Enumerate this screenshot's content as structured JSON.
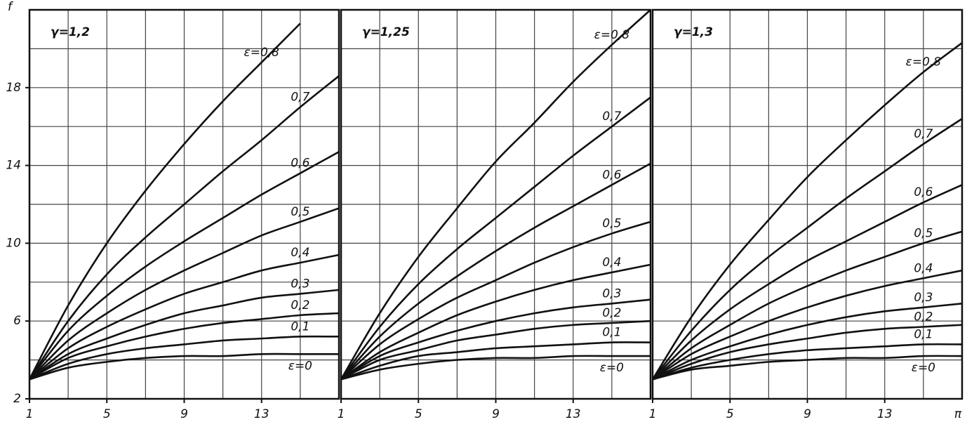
{
  "chart_data": [
    {
      "type": "line",
      "title": "γ=1,2",
      "ylabel": "f",
      "x": [
        1,
        3,
        5,
        7,
        9,
        11,
        13,
        15,
        17
      ],
      "xlim": [
        1,
        17
      ],
      "ylim": [
        2,
        22
      ],
      "xticks": [
        1,
        5,
        9,
        13
      ],
      "yticks": [
        2,
        6,
        10,
        14,
        18
      ],
      "grid_x": [
        3,
        5,
        7,
        9,
        11,
        13,
        15
      ],
      "grid_y": [
        4,
        6,
        8,
        10,
        12,
        14,
        16,
        18,
        20
      ],
      "series": [
        {
          "name": "ε=0,8",
          "color": "#111111",
          "values": [
            3,
            6.8,
            10.0,
            12.7,
            15.1,
            17.3,
            19.3,
            21.3,
            null
          ]
        },
        {
          "name": "0,7",
          "color": "#111111",
          "values": [
            3,
            6.0,
            8.4,
            10.3,
            12.0,
            13.7,
            15.3,
            17.0,
            18.6
          ]
        },
        {
          "name": "0,6",
          "color": "#111111",
          "values": [
            3,
            5.5,
            7.3,
            8.8,
            10.1,
            11.3,
            12.5,
            13.6,
            14.7
          ]
        },
        {
          "name": "0,5",
          "color": "#111111",
          "values": [
            3,
            5.0,
            6.4,
            7.6,
            8.6,
            9.5,
            10.4,
            11.1,
            11.8
          ]
        },
        {
          "name": "0,4",
          "color": "#111111",
          "values": [
            3,
            4.6,
            5.7,
            6.6,
            7.4,
            8.0,
            8.6,
            9.0,
            9.4
          ]
        },
        {
          "name": "0,3",
          "color": "#111111",
          "values": [
            3,
            4.3,
            5.1,
            5.8,
            6.4,
            6.8,
            7.2,
            7.4,
            7.6
          ]
        },
        {
          "name": "0,2",
          "color": "#111111",
          "values": [
            3,
            4.1,
            4.7,
            5.2,
            5.6,
            5.9,
            6.1,
            6.3,
            6.4
          ]
        },
        {
          "name": "0,1",
          "color": "#111111",
          "values": [
            3,
            3.8,
            4.3,
            4.6,
            4.8,
            5.0,
            5.1,
            5.2,
            5.2
          ]
        },
        {
          "name": "ε=0",
          "color": "#111111",
          "values": [
            3,
            3.6,
            3.9,
            4.1,
            4.2,
            4.2,
            4.3,
            4.3,
            4.3
          ]
        }
      ]
    },
    {
      "type": "line",
      "title": "γ=1,25",
      "x": [
        1,
        3,
        5,
        7,
        9,
        11,
        13,
        15,
        17
      ],
      "xlim": [
        1,
        17
      ],
      "ylim": [
        2,
        22
      ],
      "xticks": [
        1,
        5,
        9,
        13
      ],
      "grid_x": [
        3,
        5,
        7,
        9,
        11,
        13,
        15
      ],
      "grid_y": [
        4,
        6,
        8,
        10,
        12,
        14,
        16,
        18,
        20
      ],
      "series": [
        {
          "name": "ε=0,8",
          "color": "#111111",
          "values": [
            3,
            6.4,
            9.3,
            11.8,
            14.2,
            16.2,
            18.3,
            20.2,
            22
          ]
        },
        {
          "name": "0,7",
          "color": "#111111",
          "values": [
            3,
            5.7,
            7.9,
            9.7,
            11.3,
            12.9,
            14.5,
            16.0,
            17.5
          ]
        },
        {
          "name": "0,6",
          "color": "#111111",
          "values": [
            3,
            5.2,
            6.9,
            8.3,
            9.6,
            10.8,
            11.9,
            13.0,
            14.1
          ]
        },
        {
          "name": "0,5",
          "color": "#111111",
          "values": [
            3,
            4.8,
            6.1,
            7.2,
            8.1,
            9.0,
            9.8,
            10.5,
            11.1
          ]
        },
        {
          "name": "0,4",
          "color": "#111111",
          "values": [
            3,
            4.4,
            5.4,
            6.3,
            7.0,
            7.6,
            8.1,
            8.5,
            8.9
          ]
        },
        {
          "name": "0,3",
          "color": "#111111",
          "values": [
            3,
            4.2,
            4.9,
            5.5,
            6.0,
            6.4,
            6.7,
            6.9,
            7.1
          ]
        },
        {
          "name": "0,2",
          "color": "#111111",
          "values": [
            3,
            4.0,
            4.5,
            5.0,
            5.3,
            5.6,
            5.8,
            5.9,
            6.0
          ]
        },
        {
          "name": "0,1",
          "color": "#111111",
          "values": [
            3,
            3.7,
            4.2,
            4.4,
            4.6,
            4.7,
            4.8,
            4.9,
            4.9
          ]
        },
        {
          "name": "ε=0",
          "color": "#111111",
          "values": [
            3,
            3.5,
            3.8,
            4.0,
            4.1,
            4.1,
            4.2,
            4.2,
            4.2
          ]
        }
      ]
    },
    {
      "type": "line",
      "title": "γ=1,3",
      "xlabel": "π",
      "x": [
        1,
        3,
        5,
        7,
        9,
        11,
        13,
        15,
        17
      ],
      "xlim": [
        1,
        17
      ],
      "ylim": [
        2,
        22
      ],
      "xticks": [
        1,
        5,
        9,
        13
      ],
      "grid_x": [
        3,
        5,
        7,
        9,
        11,
        13,
        15
      ],
      "grid_y": [
        4,
        6,
        8,
        10,
        12,
        14,
        16,
        18,
        20
      ],
      "series": [
        {
          "name": "ε=0,8",
          "color": "#111111",
          "values": [
            3,
            6.2,
            8.9,
            11.2,
            13.4,
            15.3,
            17.1,
            18.8,
            20.3
          ]
        },
        {
          "name": "0,7",
          "color": "#111111",
          "values": [
            3,
            5.5,
            7.6,
            9.3,
            10.8,
            12.3,
            13.7,
            15.1,
            16.4
          ]
        },
        {
          "name": "0,6",
          "color": "#111111",
          "values": [
            3,
            5.0,
            6.6,
            7.9,
            9.1,
            10.1,
            11.1,
            12.1,
            13.0
          ]
        },
        {
          "name": "0,5",
          "color": "#111111",
          "values": [
            3,
            4.6,
            5.8,
            6.9,
            7.8,
            8.6,
            9.3,
            10.0,
            10.6
          ]
        },
        {
          "name": "0,4",
          "color": "#111111",
          "values": [
            3,
            4.3,
            5.2,
            6.0,
            6.7,
            7.3,
            7.8,
            8.2,
            8.6
          ]
        },
        {
          "name": "0,3",
          "color": "#111111",
          "values": [
            3,
            4.0,
            4.7,
            5.3,
            5.8,
            6.2,
            6.5,
            6.7,
            6.9
          ]
        },
        {
          "name": "0,2",
          "color": "#111111",
          "values": [
            3,
            3.8,
            4.4,
            4.8,
            5.1,
            5.4,
            5.6,
            5.7,
            5.8
          ]
        },
        {
          "name": "0,1",
          "color": "#111111",
          "values": [
            3,
            3.6,
            4.0,
            4.3,
            4.5,
            4.6,
            4.7,
            4.8,
            4.8
          ]
        },
        {
          "name": "ε=0",
          "color": "#111111",
          "values": [
            3,
            3.5,
            3.7,
            3.9,
            4.0,
            4.1,
            4.1,
            4.2,
            4.2
          ]
        }
      ]
    }
  ]
}
